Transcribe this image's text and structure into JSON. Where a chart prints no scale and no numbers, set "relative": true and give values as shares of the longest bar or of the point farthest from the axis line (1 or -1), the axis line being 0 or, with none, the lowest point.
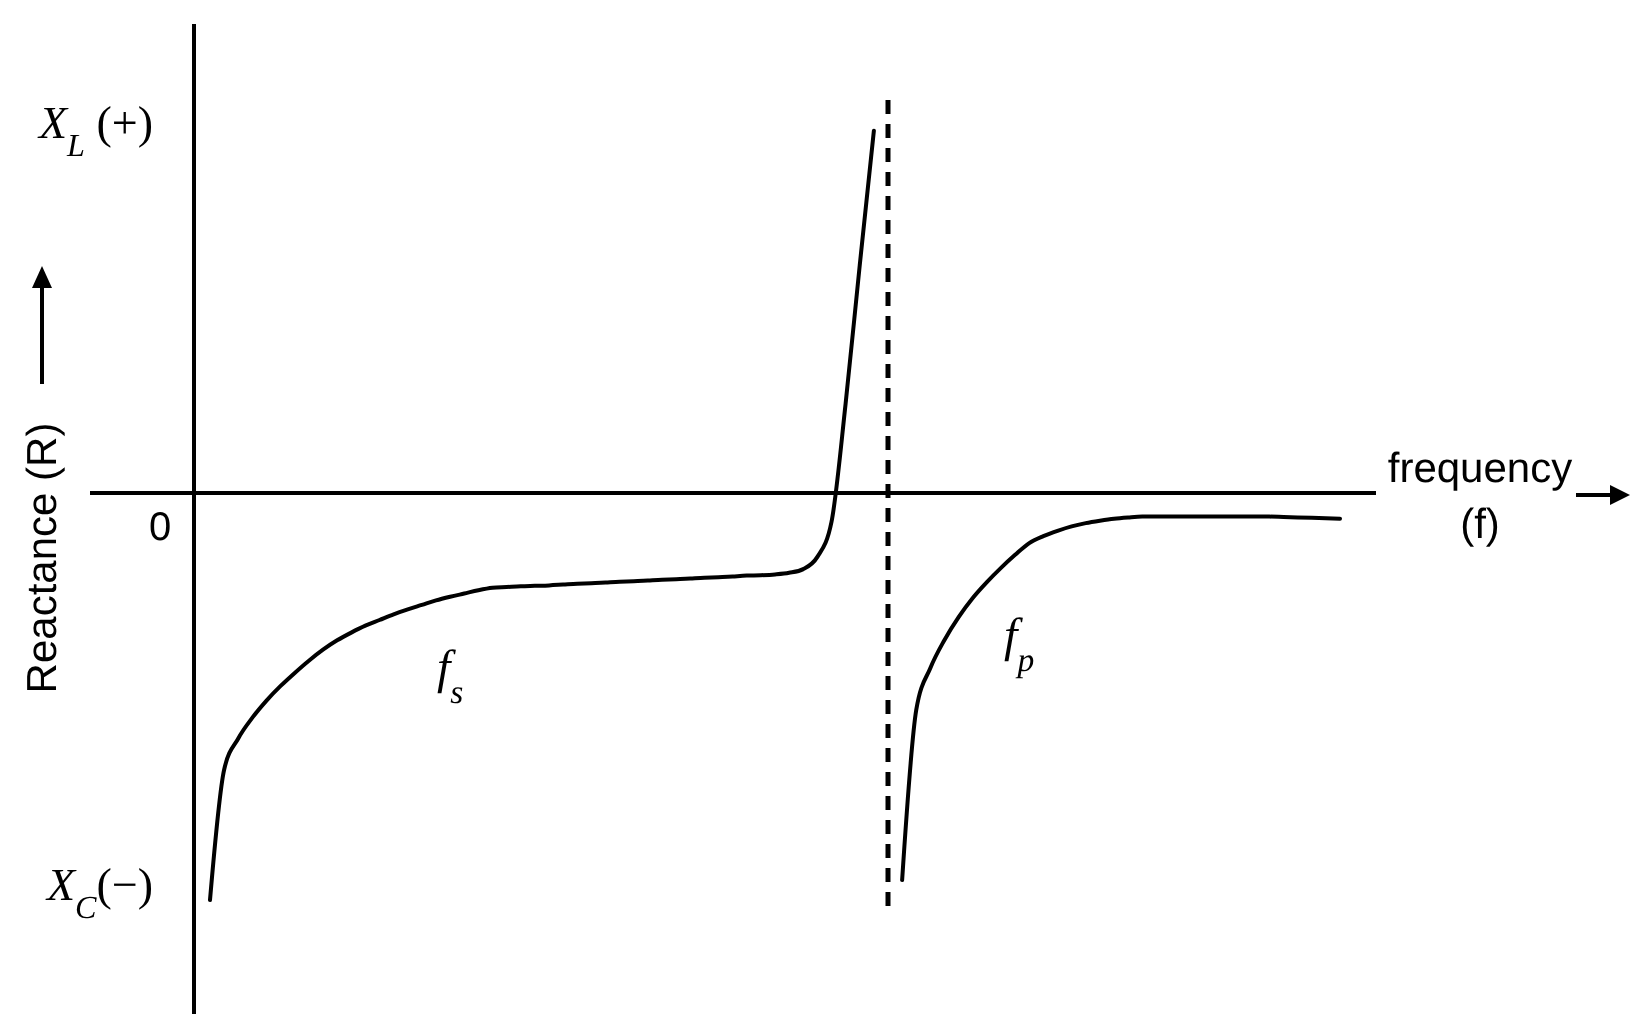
{
  "chart_data": {
    "type": "line",
    "relative": true,
    "xlabel": "frequency (f)",
    "ylabel": "Reactance (R)",
    "categories": [
      null,
      null,
      null,
      null,
      null,
      null,
      null,
      null,
      null,
      null,
      null,
      null,
      null,
      null,
      null,
      null,
      null,
      null,
      null,
      null,
      null,
      null,
      null,
      null,
      null,
      null,
      null,
      null,
      null,
      null,
      null,
      null,
      null,
      null,
      null,
      null,
      null,
      null,
      null,
      null,
      null,
      null,
      null,
      null,
      null,
      null,
      null,
      null,
      null,
      null,
      null,
      null,
      null,
      null,
      null,
      null,
      null,
      null,
      null,
      null,
      null,
      null,
      null,
      null,
      null,
      null,
      null,
      null,
      null,
      null,
      null,
      null,
      null,
      null,
      null,
      null,
      null,
      null,
      null,
      null,
      null
    ],
    "series": [
      {
        "name": "f$_{s}$",
        "color": "#000000",
        "values": [
          -1.0,
          -0.68,
          -0.603,
          -0.552,
          -0.51,
          -0.474,
          -0.442,
          -0.412,
          -0.385,
          -0.362,
          -0.343,
          -0.326,
          -0.312,
          -0.298,
          -0.286,
          -0.275,
          -0.264,
          -0.255,
          -0.247,
          -0.239,
          -0.233,
          -0.231,
          -0.229,
          -0.228,
          -0.227,
          -0.225,
          -0.223,
          -0.222,
          -0.22,
          -0.218,
          -0.217,
          -0.215,
          -0.213,
          -0.212,
          -0.21,
          -0.208,
          -0.207,
          -0.205,
          -0.203,
          -0.202,
          -0.2,
          -0.196,
          -0.187,
          -0.157,
          -0.071,
          0.22,
          0.56,
          0.89,
          null,
          null,
          null,
          null,
          null,
          null,
          null,
          null,
          null,
          null,
          null,
          null,
          null,
          null,
          null,
          null,
          null,
          null,
          null,
          null,
          null,
          null,
          null,
          null,
          null,
          null,
          null,
          null,
          null,
          null,
          null,
          null,
          null
        ]
      },
      {
        "name": "f$_{p}$",
        "color": "#000000",
        "values": [
          null,
          null,
          null,
          null,
          null,
          null,
          null,
          null,
          null,
          null,
          null,
          null,
          null,
          null,
          null,
          null,
          null,
          null,
          null,
          null,
          null,
          null,
          null,
          null,
          null,
          null,
          null,
          null,
          null,
          null,
          null,
          null,
          null,
          null,
          null,
          null,
          null,
          null,
          null,
          null,
          null,
          null,
          null,
          null,
          null,
          null,
          null,
          null,
          null,
          -0.951,
          -0.533,
          -0.43,
          -0.361,
          -0.305,
          -0.258,
          -0.219,
          -0.184,
          -0.152,
          -0.123,
          -0.106,
          -0.093,
          -0.082,
          -0.074,
          -0.068,
          -0.063,
          -0.06,
          -0.058,
          -0.058,
          -0.058,
          -0.058,
          -0.058,
          -0.058,
          -0.058,
          -0.058,
          -0.058,
          -0.058,
          -0.059,
          -0.06,
          -0.061,
          -0.062,
          -0.063
        ]
      }
    ],
    "annotations": [
      "X$_{L}$ (+)",
      "0",
      "X$_{C}$(−)"
    ],
    "line_style": "solid"
  }
}
